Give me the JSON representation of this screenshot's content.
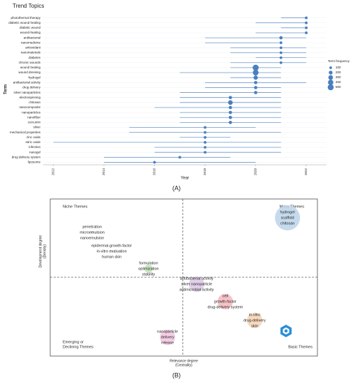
{
  "chart_data": [
    {
      "type": "dot_range",
      "title": "Trend Topics",
      "xlabel": "Year",
      "ylabel": "Term",
      "panel": "(A)",
      "legend_title": "Term frequency",
      "legend_sizes": [
        100,
        200,
        300,
        400,
        500
      ],
      "color": "#4a7fbf",
      "categories": [
        "photothermal therapy",
        "diabetic wound healing",
        "diabetic wound",
        "wound-healing",
        "antibacterial",
        "nanomedicine",
        "antioxidant",
        "nanomaterials",
        "diabetes",
        "chronic wounds",
        "wound healing",
        "wound dressing",
        "hydrogel",
        "antibacterial activity",
        "drug delivery",
        "silver nanoparticles",
        "electrospinning",
        "chitosan",
        "nanocomposite",
        "nanoparticles",
        "nanofiber",
        "curcumin",
        "silver",
        "mechanical properties",
        "zinc oxide",
        "nitric oxide",
        "infection",
        "nanogel",
        "drug delivery system",
        "liposome"
      ],
      "median_year": [
        2022,
        2022,
        2022,
        2022,
        2021,
        2021,
        2021,
        2021,
        2021,
        2021,
        2020,
        2020,
        2020,
        2020,
        2020,
        2020,
        2019,
        2019,
        2019,
        2019,
        2019,
        2019,
        2018,
        2018,
        2018,
        2018,
        2018,
        2018,
        2017,
        2016
      ],
      "year_q1": [
        2021,
        2020,
        2021,
        2020,
        2018,
        2018,
        2019,
        2019,
        2020,
        2019,
        2019,
        2017,
        2019,
        2018,
        2018,
        2017,
        2017,
        2017,
        2016,
        2017,
        2017,
        2017,
        2015,
        2015,
        2017,
        2012,
        2016,
        2016,
        2014,
        2014
      ],
      "year_q3": [
        2022,
        2022,
        2022,
        2022,
        2022,
        2021,
        2022,
        2022,
        2022,
        2022,
        2021,
        2021,
        2021,
        2022,
        2021,
        2021,
        2021,
        2021,
        2021,
        2021,
        2021,
        2021,
        2020,
        2021,
        2019,
        2021,
        2021,
        2021,
        2019,
        2020
      ],
      "frequency": [
        100,
        100,
        100,
        100,
        150,
        100,
        100,
        100,
        100,
        100,
        500,
        450,
        250,
        150,
        150,
        150,
        150,
        300,
        150,
        150,
        150,
        150,
        100,
        100,
        100,
        100,
        100,
        100,
        100,
        100
      ],
      "xlim": [
        2011.6,
        2022.8
      ],
      "xticks": [
        2012,
        2014,
        2016,
        2018,
        2020,
        2022
      ]
    },
    {
      "type": "thematic_map",
      "panel": "(B)",
      "xlabel": [
        "Relevance degree",
        "(Centrality)"
      ],
      "ylabel": [
        "Development degree",
        "(Density)"
      ],
      "quadrants": {
        "tl": [
          "Niche Themes"
        ],
        "tr": [
          "Motor Themes"
        ],
        "bl": [
          "Emerging or",
          "Declining Themes"
        ],
        "br": [
          "Basic Themes"
        ]
      },
      "xlim": [
        0,
        100
      ],
      "ylim": [
        0,
        100
      ],
      "x_mid": 49.6,
      "y_mid": 50.2,
      "clusters": [
        {
          "words": [
            "hydrogel",
            "scaffold",
            "chitosan"
          ],
          "x": 88.8,
          "y": 88,
          "size": 18,
          "color": "#bcd3ea"
        },
        {
          "words": [
            "penetration",
            "microemulsion",
            "nanoemulsion"
          ],
          "x": 15.7,
          "y": 78.7,
          "size": 2,
          "color": "#e8e8e8"
        },
        {
          "words": [
            "epidermal-growth-factor",
            "in-vitro evaluation",
            "human skin"
          ],
          "x": 23,
          "y": 66.7,
          "size": 2,
          "color": "#e8e8e8"
        },
        {
          "words": [
            "formulation",
            "optimization",
            "stability"
          ],
          "x": 36.8,
          "y": 55.6,
          "size": 6,
          "color": "#bfe3b8"
        },
        {
          "words": [
            "antibacterial activity",
            "silver nanoparticle",
            "antimicrobial activity"
          ],
          "x": 54.8,
          "y": 45.8,
          "size": 11,
          "color": "#ddc8e6"
        },
        {
          "words": [
            "cell",
            "growth-factor",
            "drug-delivery system"
          ],
          "x": 65.5,
          "y": 34.7,
          "size": 11,
          "color": "#f3b8bd"
        },
        {
          "words": [
            "in-vitro",
            "drug-delivery",
            "skin"
          ],
          "x": 76.5,
          "y": 22.7,
          "size": 11,
          "color": "#f6d2b5"
        },
        {
          "words": [
            "nanoparticle",
            "delivery",
            "release"
          ],
          "x": 43.9,
          "y": 12,
          "size": 11,
          "color": "#f1c6df"
        }
      ]
    }
  ]
}
